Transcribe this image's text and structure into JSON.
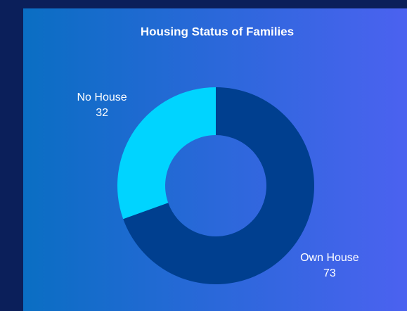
{
  "chart_data": {
    "type": "donut",
    "title": "Housing Status of Families",
    "categories": [
      "Own House",
      "No House"
    ],
    "values": [
      73,
      32
    ],
    "colors": [
      "#003f8f",
      "#00d4ff"
    ]
  }
}
